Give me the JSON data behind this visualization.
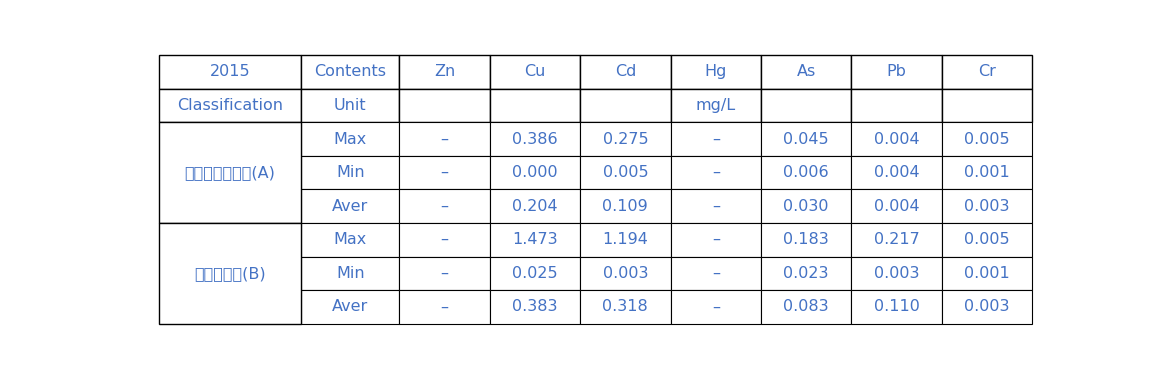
{
  "title_cell": "2015",
  "headers": [
    "Contents",
    "Zn",
    "Cu",
    "Cd",
    "Hg",
    "As",
    "Pb",
    "Cr"
  ],
  "unit_label": "mg/L",
  "groups": [
    {
      "name": "화학비료처리구(A)",
      "rows": [
        {
          "stat": "Max",
          "Zn": "–",
          "Cu": "0.386",
          "Cd": "0.275",
          "Hg": "–",
          "As": "0.045",
          "Pb": "0.004",
          "Cr": "0.005"
        },
        {
          "stat": "Min",
          "Zn": "–",
          "Cu": "0.000",
          "Cd": "0.005",
          "Hg": "–",
          "As": "0.006",
          "Pb": "0.004",
          "Cr": "0.001"
        },
        {
          "stat": "Aver",
          "Zn": "–",
          "Cu": "0.204",
          "Cd": "0.109",
          "Hg": "–",
          "As": "0.030",
          "Pb": "0.004",
          "Cr": "0.003"
        }
      ]
    },
    {
      "name": "액비처리구(B)",
      "rows": [
        {
          "stat": "Max",
          "Zn": "–",
          "Cu": "1.473",
          "Cd": "1.194",
          "Hg": "–",
          "As": "0.183",
          "Pb": "0.217",
          "Cr": "0.005"
        },
        {
          "stat": "Min",
          "Zn": "–",
          "Cu": "0.025",
          "Cd": "0.003",
          "Hg": "–",
          "As": "0.023",
          "Pb": "0.003",
          "Cr": "0.001"
        },
        {
          "stat": "Aver",
          "Zn": "–",
          "Cu": "0.383",
          "Cd": "0.318",
          "Hg": "–",
          "As": "0.083",
          "Pb": "0.110",
          "Cr": "0.003"
        }
      ]
    }
  ],
  "text_color": "#4472c4",
  "border_color": "#000000",
  "bg_color": "#ffffff",
  "font_size": 11.5
}
